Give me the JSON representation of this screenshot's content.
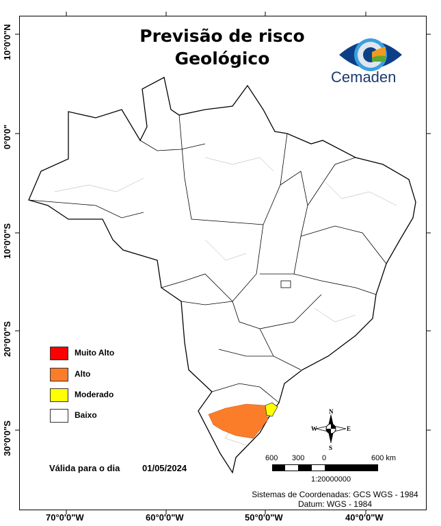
{
  "title": {
    "line1": "Previsão de risco",
    "line2": "Geológico"
  },
  "logo": {
    "text": "Cemaden",
    "colors": [
      "#0d3f86",
      "#3aa0e0",
      "#f29a1f",
      "#5aa832"
    ]
  },
  "axes": {
    "latitude_labels": [
      "10°0'0\"N",
      "0°0'0\"",
      "10°0'0\"S",
      "20°0'0\"S",
      "30°0'0\"S"
    ],
    "longitude_labels": [
      "70°0'0\"W",
      "60°0'0\"W",
      "50°0'0\"W",
      "40°0'0\"W"
    ]
  },
  "legend": {
    "items": [
      {
        "label": "Muito Alto",
        "color": "#ff0000"
      },
      {
        "label": "Alto",
        "color": "#fb7d2a"
      },
      {
        "label": "Moderado",
        "color": "#ffff00"
      },
      {
        "label": "Baixo",
        "color": "#ffffff"
      }
    ]
  },
  "validity": {
    "label": "Válida para o dia",
    "date": "01/05/2024"
  },
  "compass": {
    "n": "N",
    "s": "S",
    "e": "E",
    "w": "W"
  },
  "scale_bar": {
    "ticks": [
      "600",
      "300",
      "0",
      "600 km"
    ],
    "ratio": "1:20000000"
  },
  "coordinate_system": {
    "line1": "Sistemas de Coordenadas: GCS WGS - 1984",
    "line2": "Datum: WGS - 1984"
  },
  "risk_areas": [
    {
      "region": "Rio Grande do Sul (centro/norte)",
      "level": "Alto"
    },
    {
      "region": "Santa Catarina (litoral sul)",
      "level": "Moderado"
    }
  ]
}
